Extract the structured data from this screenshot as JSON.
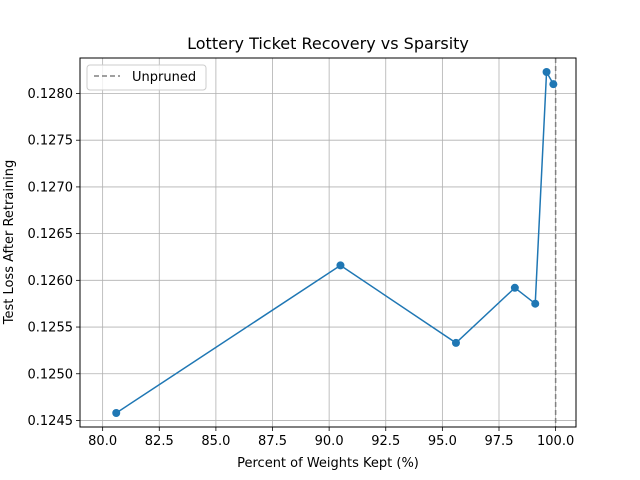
{
  "chart_data": {
    "type": "line",
    "title": "Lottery Ticket Recovery vs Sparsity",
    "xlabel": "Percent of Weights Kept (%)",
    "ylabel": "Test Loss After Retraining",
    "xlim": [
      79.0,
      100.9
    ],
    "ylim": [
      0.12443,
      0.12838
    ],
    "xticks": [
      80.0,
      82.5,
      85.0,
      87.5,
      90.0,
      92.5,
      95.0,
      97.5,
      100.0
    ],
    "xtick_labels": [
      "80.0",
      "82.5",
      "85.0",
      "87.5",
      "90.0",
      "92.5",
      "95.0",
      "97.5",
      "100.0"
    ],
    "yticks": [
      0.1245,
      0.125,
      0.1255,
      0.126,
      0.1265,
      0.127,
      0.1275,
      0.128
    ],
    "ytick_labels": [
      "0.1245",
      "0.1250",
      "0.1255",
      "0.1260",
      "0.1265",
      "0.1270",
      "0.1275",
      "0.1280"
    ],
    "grid": true,
    "legend": {
      "position": "upper-left",
      "entries": [
        "Unpruned"
      ]
    },
    "series": [
      {
        "color": "#1f77b4",
        "x": [
          80.6,
          90.5,
          95.6,
          98.2,
          99.1,
          99.6,
          99.9
        ],
        "y": [
          0.12458,
          0.12616,
          0.12533,
          0.12592,
          0.12575,
          0.12823,
          0.1281
        ]
      }
    ],
    "reference_line": {
      "name": "Unpruned",
      "x": 100.0,
      "color": "#808080",
      "style": "dashed"
    }
  }
}
